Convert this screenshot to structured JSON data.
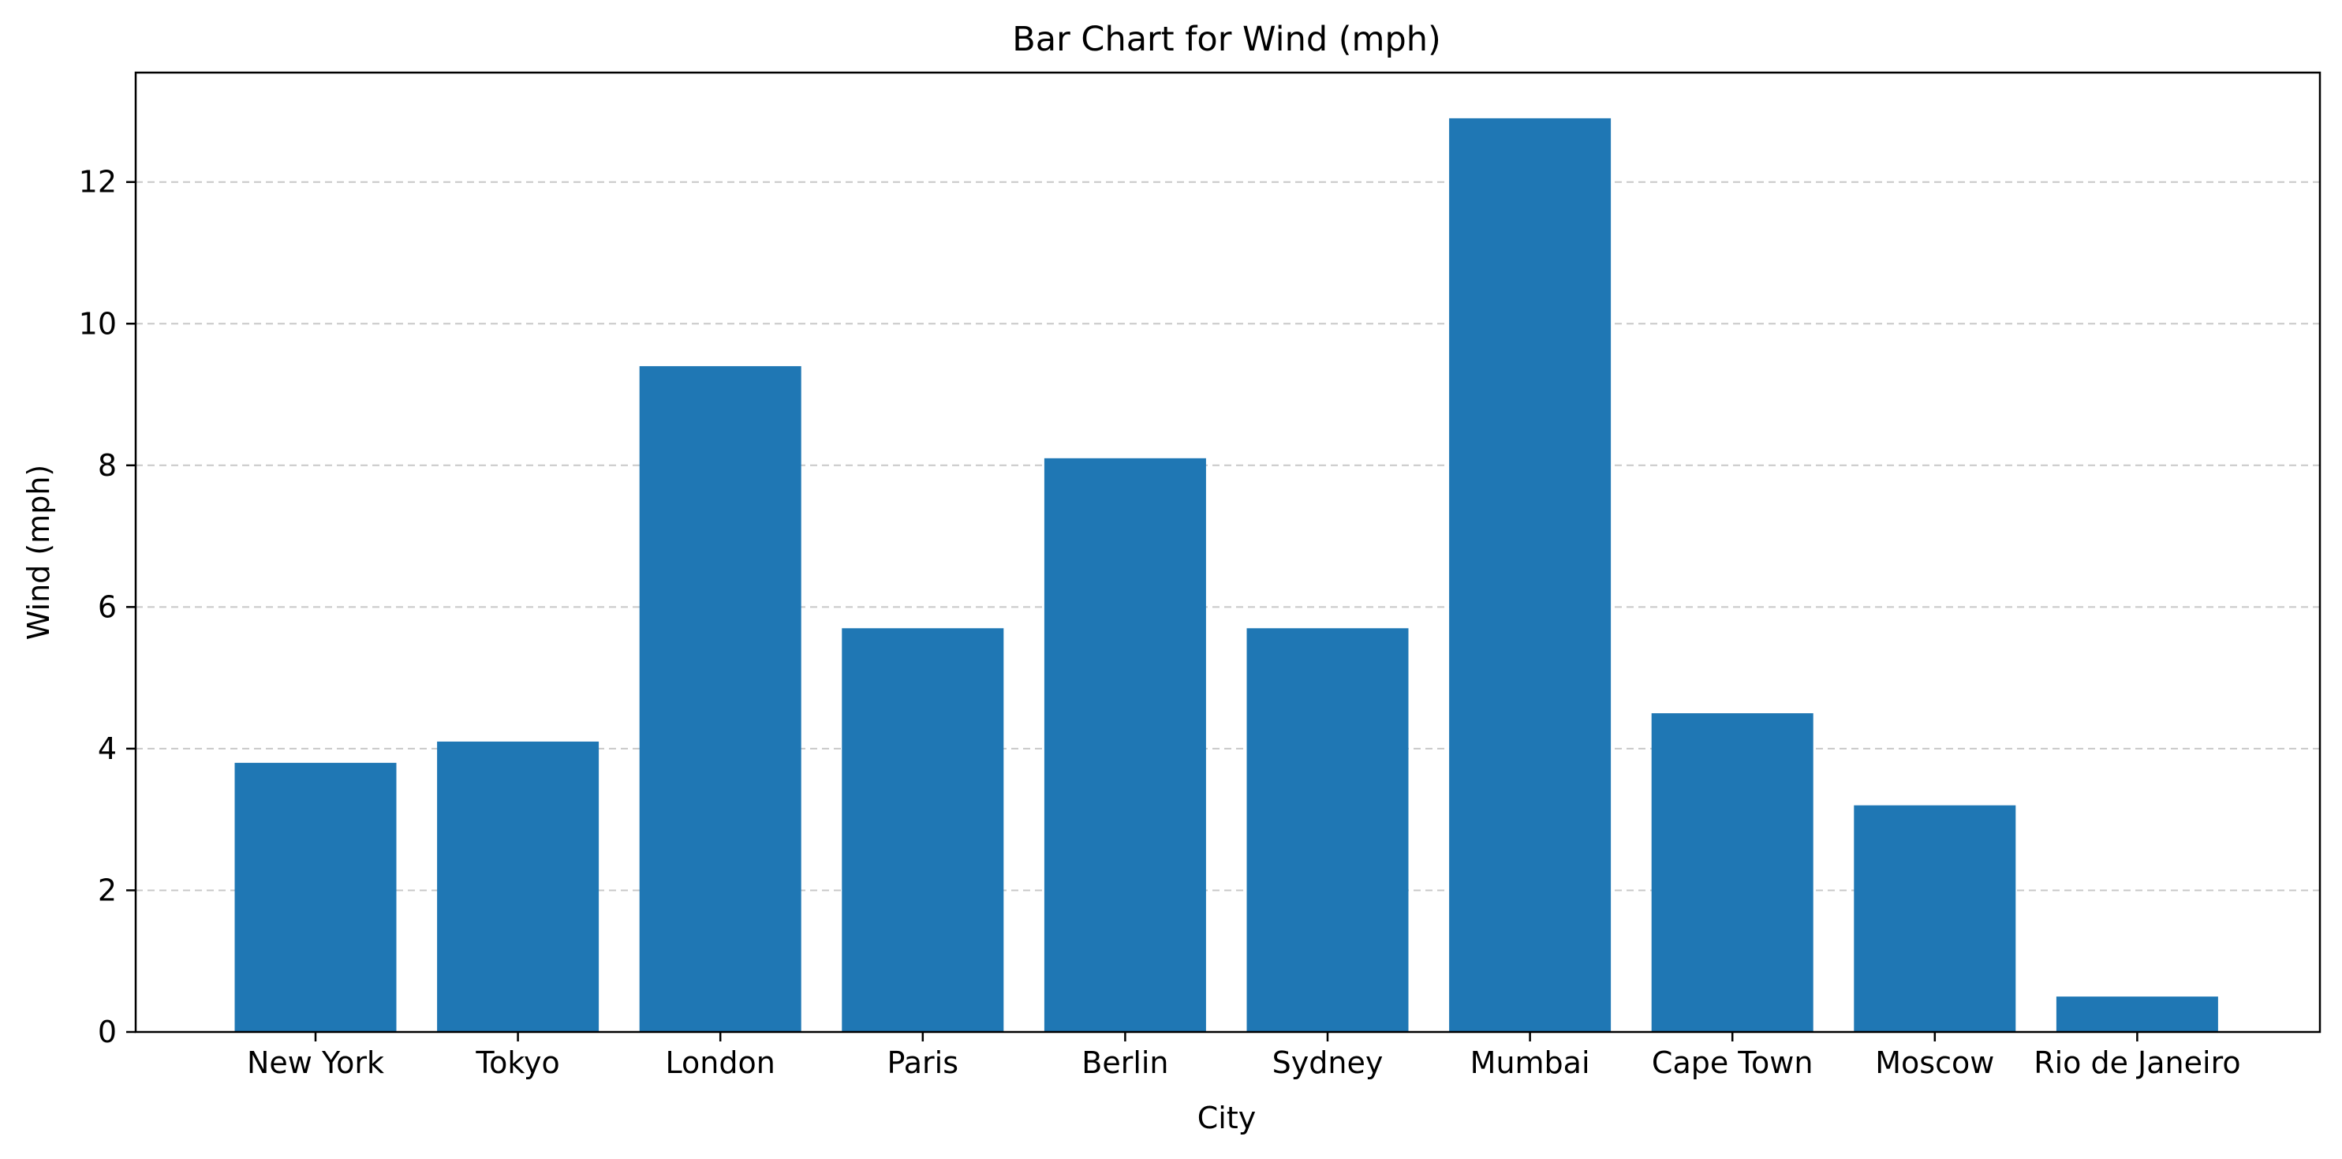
{
  "chart_data": {
    "type": "bar",
    "title": "Bar Chart for Wind (mph)",
    "xlabel": "City",
    "ylabel": "Wind (mph)",
    "categories": [
      "New York",
      "Tokyo",
      "London",
      "Paris",
      "Berlin",
      "Sydney",
      "Mumbai",
      "Cape Town",
      "Moscow",
      "Rio de Janeiro"
    ],
    "values": [
      3.8,
      4.1,
      9.4,
      5.7,
      8.1,
      5.7,
      12.9,
      4.5,
      3.2,
      0.5
    ],
    "ylim": [
      0,
      13.545
    ],
    "yticks": [
      "0",
      "2",
      "4",
      "6",
      "8",
      "10",
      "12"
    ],
    "grid": "horizontal-dashed",
    "bar_color": "#1f77b4",
    "grid_color": "#c8c8c8"
  }
}
